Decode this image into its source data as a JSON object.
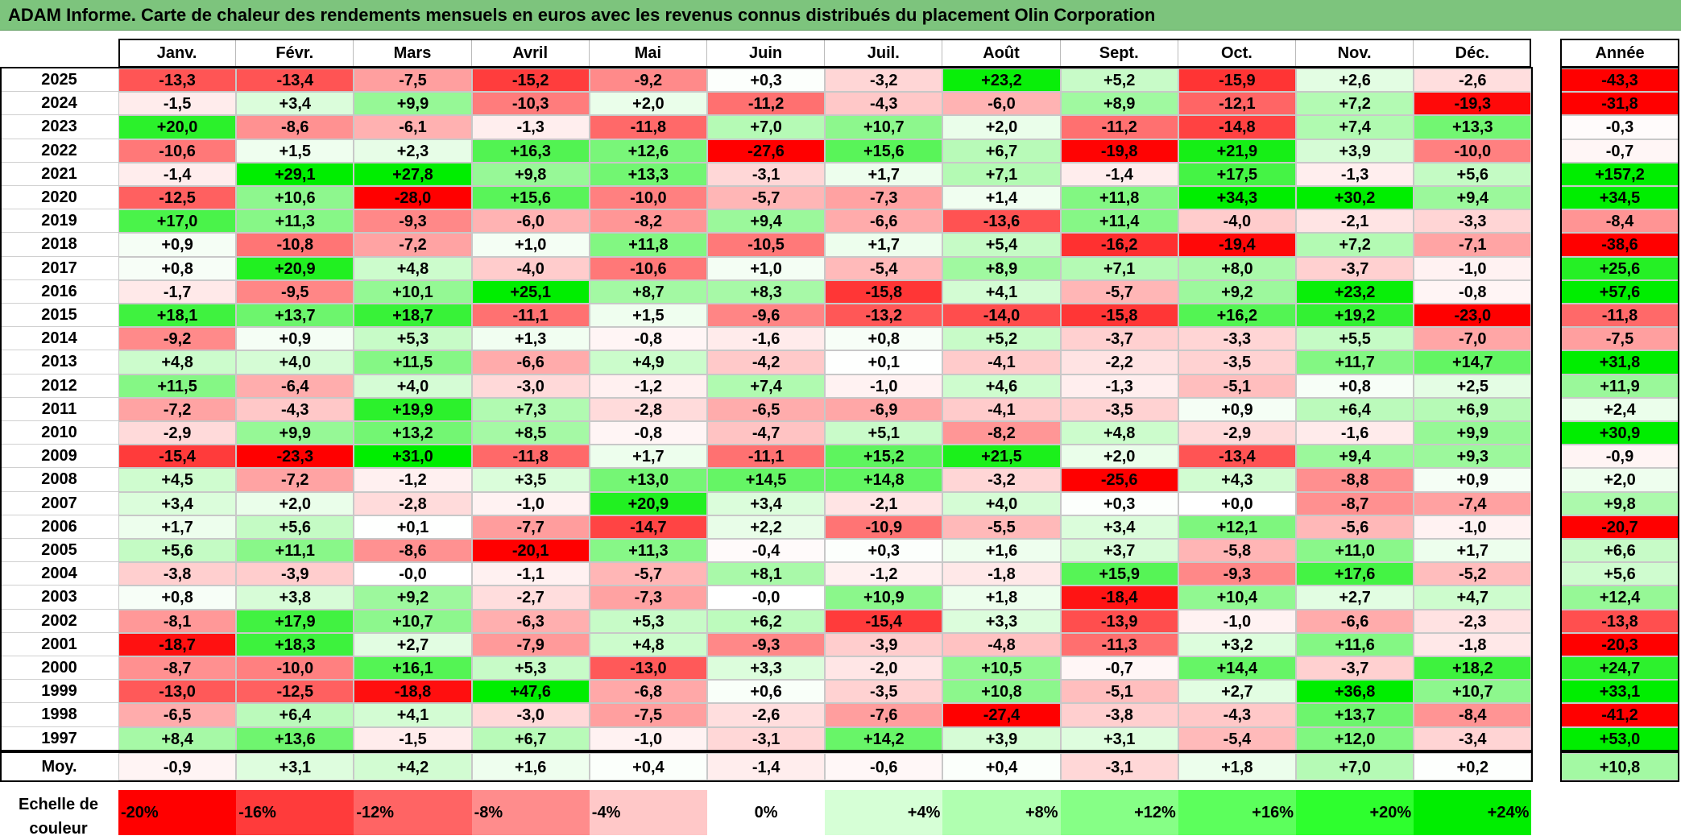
{
  "title": "ADAM Informe. Carte de chaleur des rendements mensuels en euros avec les revenus connus distribués du placement Olin Corporation",
  "chart_data": {
    "type": "heatmap",
    "title": "ADAM Informe. Carte de chaleur des rendements mensuels en euros avec les revenus connus distribués du placement Olin Corporation",
    "months": [
      "Janv.",
      "Févr.",
      "Mars",
      "Avril",
      "Mai",
      "Juin",
      "Juil.",
      "Août",
      "Sept.",
      "Oct.",
      "Nov.",
      "Déc."
    ],
    "year_header": "Année",
    "rows": [
      {
        "year": "2025",
        "values": [
          "-13,3",
          "-13,4",
          "-7,5",
          "-15,2",
          "-9,2",
          "+0,3",
          "-3,2",
          "+23,2",
          "+5,2",
          "-15,9",
          "+2,6",
          "-2,6"
        ],
        "annual": "-43,3"
      },
      {
        "year": "2024",
        "values": [
          "-1,5",
          "+3,4",
          "+9,9",
          "-10,3",
          "+2,0",
          "-11,2",
          "-4,3",
          "-6,0",
          "+8,9",
          "-12,1",
          "+7,2",
          "-19,3"
        ],
        "annual": "-31,8"
      },
      {
        "year": "2023",
        "values": [
          "+20,0",
          "-8,6",
          "-6,1",
          "-1,3",
          "-11,8",
          "+7,0",
          "+10,7",
          "+2,0",
          "-11,2",
          "-14,8",
          "+7,4",
          "+13,3"
        ],
        "annual": "-0,3"
      },
      {
        "year": "2022",
        "values": [
          "-10,6",
          "+1,5",
          "+2,3",
          "+16,3",
          "+12,6",
          "-27,6",
          "+15,6",
          "+6,7",
          "-19,8",
          "+21,9",
          "+3,9",
          "-10,0"
        ],
        "annual": "-0,7"
      },
      {
        "year": "2021",
        "values": [
          "-1,4",
          "+29,1",
          "+27,8",
          "+9,8",
          "+13,3",
          "-3,1",
          "+1,7",
          "+7,1",
          "-1,4",
          "+17,5",
          "-1,3",
          "+5,6"
        ],
        "annual": "+157,2"
      },
      {
        "year": "2020",
        "values": [
          "-12,5",
          "+10,6",
          "-28,0",
          "+15,6",
          "-10,0",
          "-5,7",
          "-7,3",
          "+1,4",
          "+11,8",
          "+34,3",
          "+30,2",
          "+9,4"
        ],
        "annual": "+34,5"
      },
      {
        "year": "2019",
        "values": [
          "+17,0",
          "+11,3",
          "-9,3",
          "-6,0",
          "-8,2",
          "+9,4",
          "-6,6",
          "-13,6",
          "+11,4",
          "-4,0",
          "-2,1",
          "-3,3"
        ],
        "annual": "-8,4"
      },
      {
        "year": "2018",
        "values": [
          "+0,9",
          "-10,8",
          "-7,2",
          "+1,0",
          "+11,8",
          "-10,5",
          "+1,7",
          "+5,4",
          "-16,2",
          "-19,4",
          "+7,2",
          "-7,1"
        ],
        "annual": "-38,6"
      },
      {
        "year": "2017",
        "values": [
          "+0,8",
          "+20,9",
          "+4,8",
          "-4,0",
          "-10,6",
          "+1,0",
          "-5,4",
          "+8,9",
          "+7,1",
          "+8,0",
          "-3,7",
          "-1,0"
        ],
        "annual": "+25,6"
      },
      {
        "year": "2016",
        "values": [
          "-1,7",
          "-9,5",
          "+10,1",
          "+25,1",
          "+8,7",
          "+8,3",
          "-15,8",
          "+4,1",
          "-5,7",
          "+9,2",
          "+23,2",
          "-0,8"
        ],
        "annual": "+57,6"
      },
      {
        "year": "2015",
        "values": [
          "+18,1",
          "+13,7",
          "+18,7",
          "-11,1",
          "+1,5",
          "-9,6",
          "-13,2",
          "-14,0",
          "-15,8",
          "+16,2",
          "+19,2",
          "-23,0"
        ],
        "annual": "-11,8"
      },
      {
        "year": "2014",
        "values": [
          "-9,2",
          "+0,9",
          "+5,3",
          "+1,3",
          "-0,8",
          "-1,6",
          "+0,8",
          "+5,2",
          "-3,7",
          "-3,3",
          "+5,5",
          "-7,0"
        ],
        "annual": "-7,5"
      },
      {
        "year": "2013",
        "values": [
          "+4,8",
          "+4,0",
          "+11,5",
          "-6,6",
          "+4,9",
          "-4,2",
          "+0,1",
          "-4,1",
          "-2,2",
          "-3,5",
          "+11,7",
          "+14,7"
        ],
        "annual": "+31,8"
      },
      {
        "year": "2012",
        "values": [
          "+11,5",
          "-6,4",
          "+4,0",
          "-3,0",
          "-1,2",
          "+7,4",
          "-1,0",
          "+4,6",
          "-1,3",
          "-5,1",
          "+0,8",
          "+2,5"
        ],
        "annual": "+11,9"
      },
      {
        "year": "2011",
        "values": [
          "-7,2",
          "-4,3",
          "+19,9",
          "+7,3",
          "-2,8",
          "-6,5",
          "-6,9",
          "-4,1",
          "-3,5",
          "+0,9",
          "+6,4",
          "+6,9"
        ],
        "annual": "+2,4"
      },
      {
        "year": "2010",
        "values": [
          "-2,9",
          "+9,9",
          "+13,2",
          "+8,5",
          "-0,8",
          "-4,7",
          "+5,1",
          "-8,2",
          "+4,8",
          "-2,9",
          "-1,6",
          "+9,9"
        ],
        "annual": "+30,9"
      },
      {
        "year": "2009",
        "values": [
          "-15,4",
          "-23,3",
          "+31,0",
          "-11,8",
          "+1,7",
          "-11,1",
          "+15,2",
          "+21,5",
          "+2,0",
          "-13,4",
          "+9,4",
          "+9,3"
        ],
        "annual": "-0,9"
      },
      {
        "year": "2008",
        "values": [
          "+4,5",
          "-7,2",
          "-1,2",
          "+3,5",
          "+13,0",
          "+14,5",
          "+14,8",
          "-3,2",
          "-25,6",
          "+4,3",
          "-8,8",
          "+0,9"
        ],
        "annual": "+2,0"
      },
      {
        "year": "2007",
        "values": [
          "+3,4",
          "+2,0",
          "-2,8",
          "-1,0",
          "+20,9",
          "+3,4",
          "-2,1",
          "+4,0",
          "+0,3",
          "+0,0",
          "-8,7",
          "-7,4"
        ],
        "annual": "+9,8"
      },
      {
        "year": "2006",
        "values": [
          "+1,7",
          "+5,6",
          "+0,1",
          "-7,7",
          "-14,7",
          "+2,2",
          "-10,9",
          "-5,5",
          "+3,4",
          "+12,1",
          "-5,6",
          "-1,0"
        ],
        "annual": "-20,7"
      },
      {
        "year": "2005",
        "values": [
          "+5,6",
          "+11,1",
          "-8,6",
          "-20,1",
          "+11,3",
          "-0,4",
          "+0,3",
          "+1,6",
          "+3,7",
          "-5,8",
          "+11,0",
          "+1,7"
        ],
        "annual": "+6,6"
      },
      {
        "year": "2004",
        "values": [
          "-3,8",
          "-3,9",
          "-0,0",
          "-1,1",
          "-5,7",
          "+8,1",
          "-1,2",
          "-1,8",
          "+15,9",
          "-9,3",
          "+17,6",
          "-5,2"
        ],
        "annual": "+5,6"
      },
      {
        "year": "2003",
        "values": [
          "+0,8",
          "+3,8",
          "+9,2",
          "-2,7",
          "-7,3",
          "-0,0",
          "+10,9",
          "+1,8",
          "-18,4",
          "+10,4",
          "+2,7",
          "+4,7"
        ],
        "annual": "+12,4"
      },
      {
        "year": "2002",
        "values": [
          "-8,1",
          "+17,9",
          "+10,7",
          "-6,3",
          "+5,3",
          "+6,2",
          "-15,4",
          "+3,3",
          "-13,9",
          "-1,0",
          "-6,6",
          "-2,3"
        ],
        "annual": "-13,8"
      },
      {
        "year": "2001",
        "values": [
          "-18,7",
          "+18,3",
          "+2,7",
          "-7,9",
          "+4,8",
          "-9,3",
          "-3,9",
          "-4,8",
          "-11,3",
          "+3,2",
          "+11,6",
          "-1,8"
        ],
        "annual": "-20,3"
      },
      {
        "year": "2000",
        "values": [
          "-8,7",
          "-10,0",
          "+16,1",
          "+5,3",
          "-13,0",
          "+3,3",
          "-2,0",
          "+10,5",
          "-0,7",
          "+14,4",
          "-3,7",
          "+18,2"
        ],
        "annual": "+24,7"
      },
      {
        "year": "1999",
        "values": [
          "-13,0",
          "-12,5",
          "-18,8",
          "+47,6",
          "-6,8",
          "+0,6",
          "-3,5",
          "+10,8",
          "-5,1",
          "+2,7",
          "+36,8",
          "+10,7"
        ],
        "annual": "+33,1"
      },
      {
        "year": "1998",
        "values": [
          "-6,5",
          "+6,4",
          "+4,1",
          "-3,0",
          "-7,5",
          "-2,6",
          "-7,6",
          "-27,4",
          "-3,8",
          "-4,3",
          "+13,7",
          "-8,4"
        ],
        "annual": "-41,2"
      },
      {
        "year": "1997",
        "values": [
          "+8,4",
          "+13,6",
          "-1,5",
          "+6,7",
          "-1,0",
          "-3,1",
          "+14,2",
          "+3,9",
          "+3,1",
          "-5,4",
          "+12,0",
          "-3,4"
        ],
        "annual": "+53,0"
      }
    ],
    "average": {
      "label": "Moy.",
      "values": [
        "-0,9",
        "+3,1",
        "+4,2",
        "+1,6",
        "+0,4",
        "-1,4",
        "-0,6",
        "+0,4",
        "-3,1",
        "+1,8",
        "+7,0",
        "+0,2"
      ],
      "annual": "+10,8"
    },
    "scale": {
      "label_line1": "Echelle de",
      "label_line2": "couleur",
      "entries": [
        "-20%",
        "-16%",
        "-12%",
        "-8%",
        "-4%",
        "0%",
        "+4%",
        "+8%",
        "+12%",
        "+16%",
        "+20%",
        "+24%"
      ],
      "colors": [
        "#ff0000",
        "#ff3b3b",
        "#ff6464",
        "#ff8c8c",
        "#ffc8c8",
        "#ffffff",
        "#d6ffd6",
        "#b0ffb0",
        "#86ff86",
        "#5cff5c",
        "#2eff2e",
        "#00ee00"
      ]
    },
    "colors": {
      "negative_max": "#ff0000",
      "neutral": "#ffffff",
      "positive_max": "#00e600"
    }
  }
}
